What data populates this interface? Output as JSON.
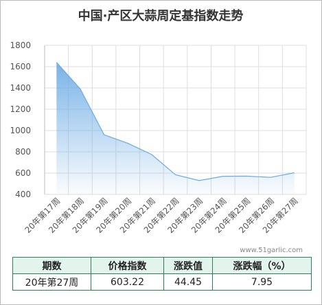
{
  "chart_data": {
    "type": "line",
    "title": "中国·产区大蒜周定基指数走势",
    "categories": [
      "20年第17周",
      "20年第18周",
      "20年第19周",
      "20年第20周",
      "20年第21周",
      "20年第22周",
      "20年第23周",
      "20年第24周",
      "20年第25周",
      "20年第26周",
      "20年第27周"
    ],
    "values": [
      1640,
      1390,
      960,
      880,
      775,
      585,
      530,
      570,
      572,
      560,
      603.22
    ],
    "color": "#6aaae4",
    "ylim": [
      400,
      1800
    ],
    "yticks": [
      400,
      600,
      800,
      1000,
      1200,
      1400,
      1600,
      1800
    ],
    "grid": true,
    "annotation": "www.51garlic.com"
  },
  "table": {
    "header": [
      "期数",
      "价格指数",
      "涨跌值",
      "涨跌幅（%）"
    ],
    "rows": [
      [
        "20年第27周",
        603.22,
        44.45,
        7.95
      ]
    ]
  }
}
